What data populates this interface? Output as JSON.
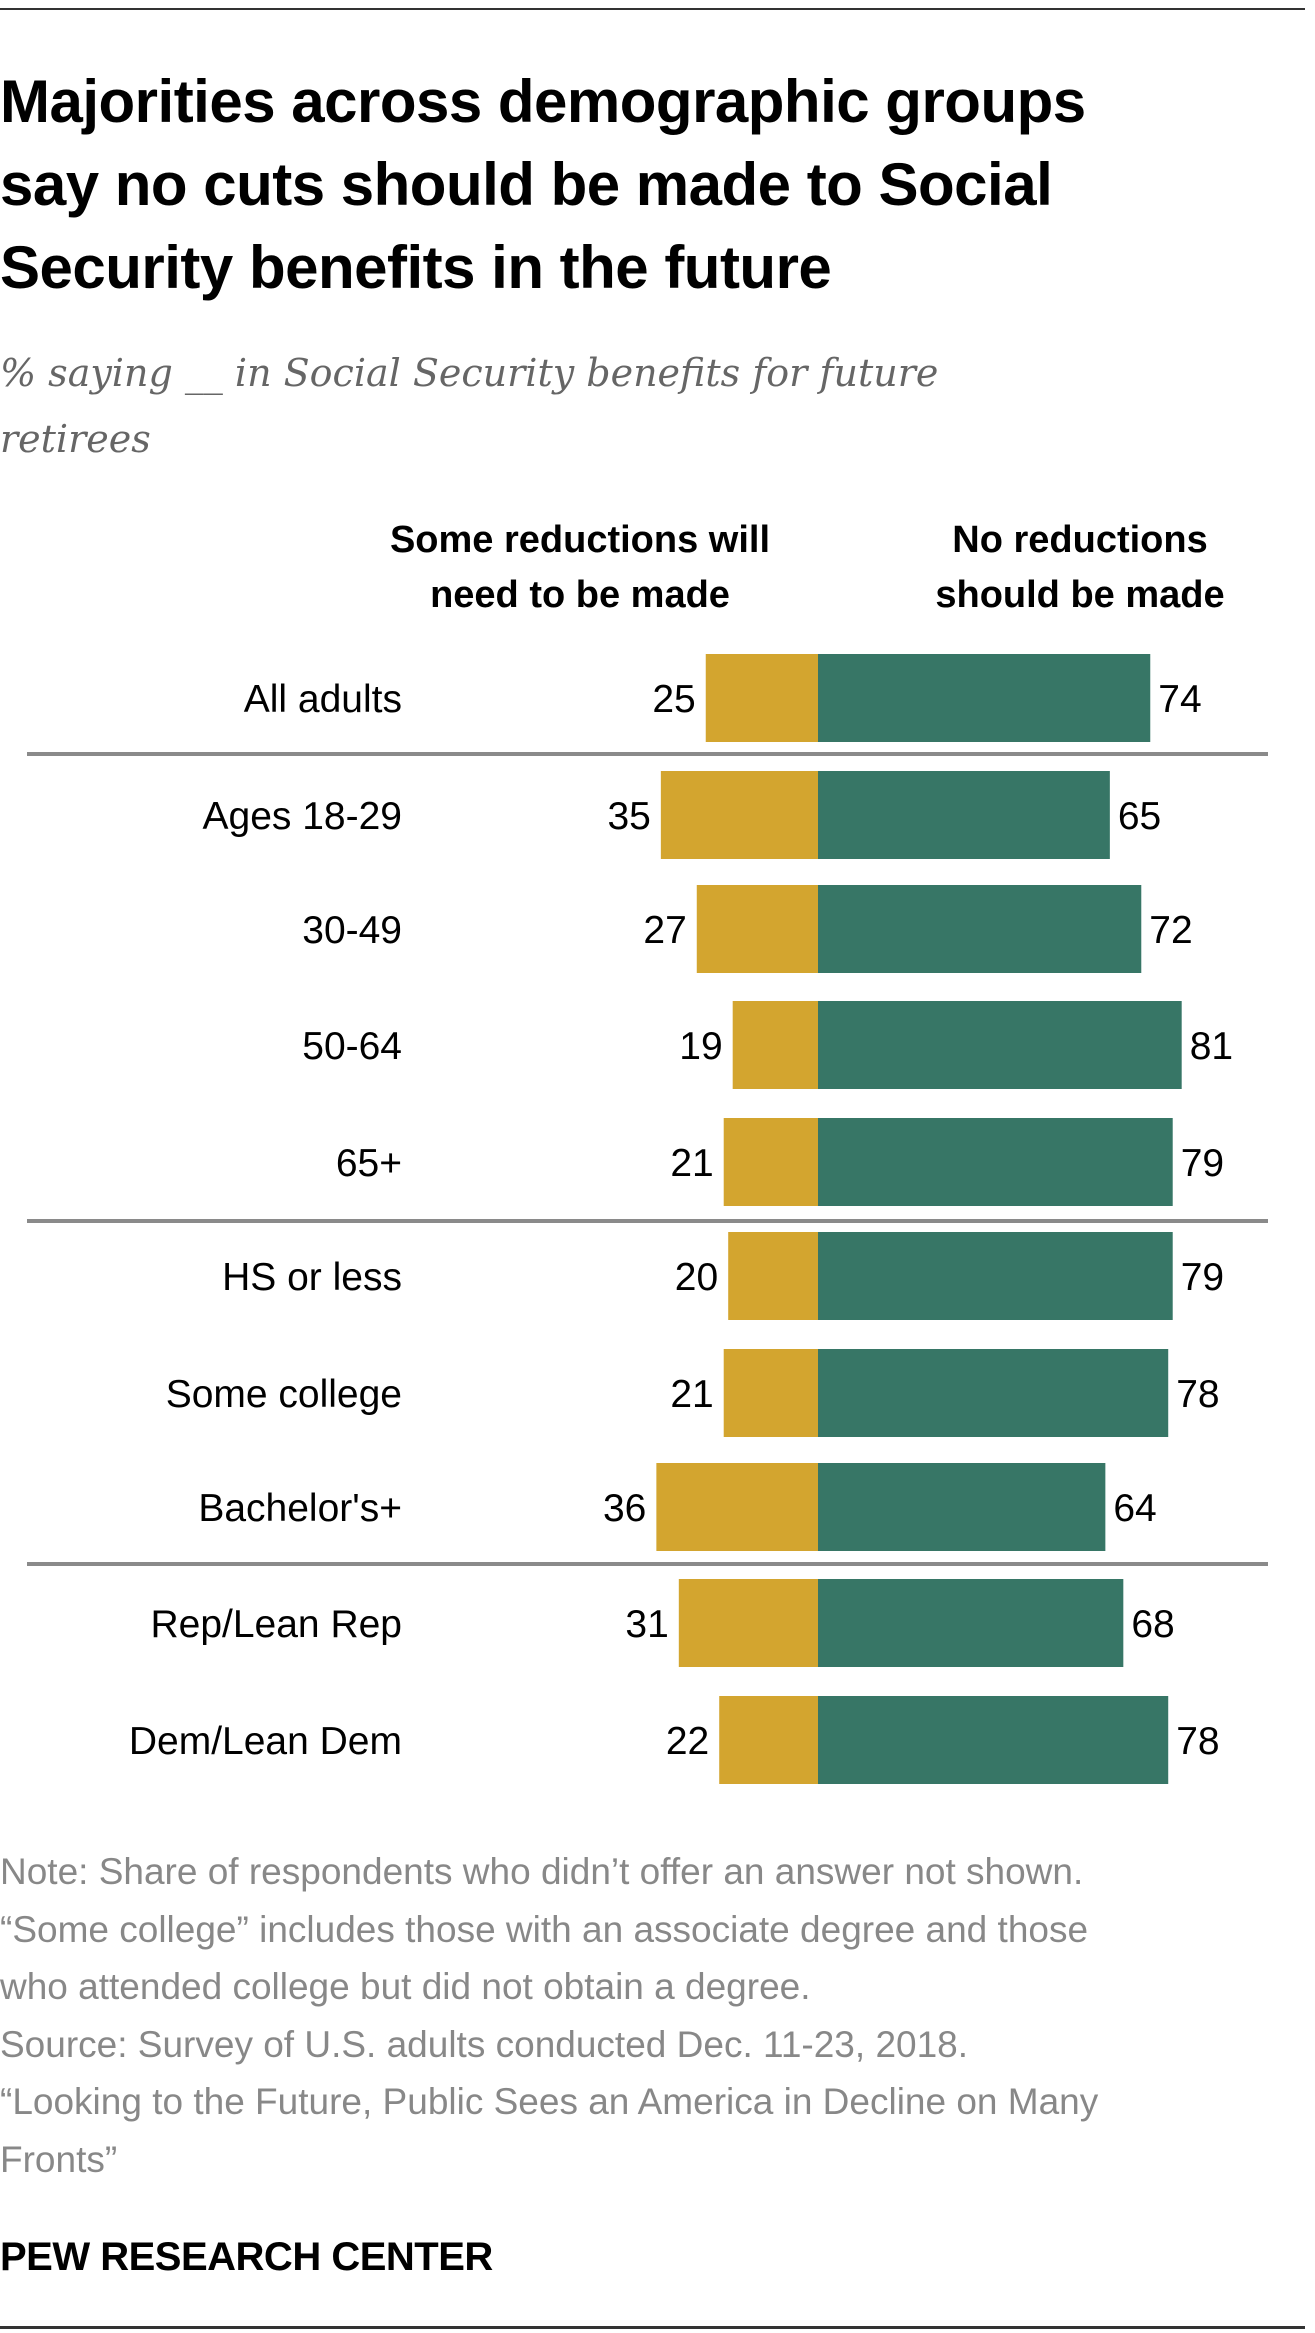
{
  "chart_data": {
    "type": "bar",
    "subtype": "diverging-stacked-horizontal",
    "title": "Majorities across demographic groups say no cuts should be made to Social Security benefits in the future",
    "subtitle": "% saying __ in Social Security benefits for future retirees",
    "categories": [
      "All adults",
      "Ages 18-29",
      "30-49",
      "50-64",
      "65+",
      "HS or less",
      "Some college",
      "Bachelor's+",
      "Rep/Lean Rep",
      "Dem/Lean Dem"
    ],
    "groups": [
      {
        "name": "total",
        "rows": [
          "All adults"
        ]
      },
      {
        "name": "age",
        "rows": [
          "Ages 18-29",
          "30-49",
          "50-64",
          "65+"
        ]
      },
      {
        "name": "education",
        "rows": [
          "HS or less",
          "Some college",
          "Bachelor's+"
        ]
      },
      {
        "name": "party",
        "rows": [
          "Rep/Lean Rep",
          "Dem/Lean Dem"
        ]
      }
    ],
    "series": [
      {
        "name": "Some reductions will need to be made",
        "color": "#D3A52F",
        "direction": "left",
        "values": [
          25,
          35,
          27,
          19,
          21,
          20,
          21,
          36,
          31,
          22
        ]
      },
      {
        "name": "No reductions should be made",
        "color": "#377666",
        "direction": "right",
        "values": [
          74,
          65,
          72,
          81,
          79,
          79,
          78,
          64,
          68,
          78
        ]
      }
    ],
    "xlabel": "",
    "ylabel": "",
    "xlim": [
      0,
      100
    ],
    "grid": false,
    "legend": "top"
  },
  "legend": {
    "left_line1": "Some reductions will",
    "left_line2": "need to be made",
    "right_line1": "No reductions",
    "right_line2": "should be made"
  },
  "title": {
    "line1": "Majorities across demographic groups",
    "line2": "say no cuts should be made to Social",
    "line3": "Security benefits in the future"
  },
  "subtitle": {
    "line1": "% saying __ in Social Security benefits for future",
    "line2": "retirees"
  },
  "notes": {
    "line1": "Note: Share of respondents who didn’t offer an answer not shown.",
    "line2": "“Some college” includes those with an associate degree and those",
    "line3": "who attended college but did not obtain a degree.",
    "line4": "Source: Survey of U.S. adults conducted Dec. 11-23, 2018.",
    "line5": "“Looking to the Future, Public Sees an America in Decline on Many",
    "line6": "Fronts”"
  },
  "brand": "PEW RESEARCH CENTER",
  "colors": {
    "reductions": "#D3A52F",
    "no_reductions": "#377666",
    "separator": "#8a8a8a",
    "note_text": "#888888"
  }
}
